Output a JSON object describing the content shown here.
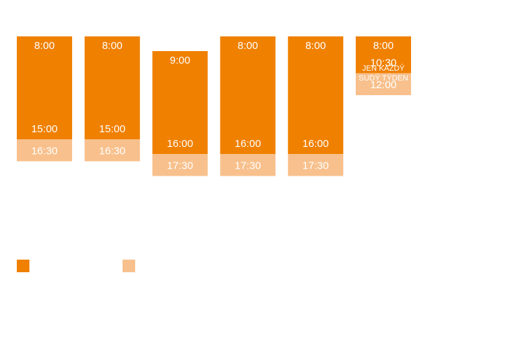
{
  "chart_data": {
    "type": "bar",
    "title": "",
    "xlabel": "",
    "ylabel": "",
    "ylim_hours": [
      8,
      17.5
    ],
    "colors": {
      "primary": "#F08000",
      "extended": "#F8C08C"
    },
    "columns": [
      {
        "start": 8.0,
        "end": 15.0,
        "extended_end": 16.5,
        "start_label": "8:00",
        "end_label": "15:00",
        "extended_label": "16:30",
        "note": []
      },
      {
        "start": 8.0,
        "end": 15.0,
        "extended_end": 16.5,
        "start_label": "8:00",
        "end_label": "15:00",
        "extended_label": "16:30",
        "note": []
      },
      {
        "start": 9.0,
        "end": 16.0,
        "extended_end": 17.5,
        "start_label": "9:00",
        "end_label": "16:00",
        "extended_label": "17:30",
        "note": []
      },
      {
        "start": 8.0,
        "end": 16.0,
        "extended_end": 17.5,
        "start_label": "8:00",
        "end_label": "16:00",
        "extended_label": "17:30",
        "note": []
      },
      {
        "start": 8.0,
        "end": 16.0,
        "extended_end": 17.5,
        "start_label": "8:00",
        "end_label": "16:00",
        "extended_label": "17:30",
        "note": []
      },
      {
        "start": 8.0,
        "end": 10.5,
        "extended_end": 12.0,
        "start_label": "8:00",
        "end_label": "10:30",
        "extended_label": "12:00",
        "note": [
          "JEN KAŽDÝ",
          "SUDÝ TÝDEN"
        ]
      }
    ],
    "legend": [
      {
        "series": "primary",
        "text": ""
      },
      {
        "series": "extended",
        "text": ""
      }
    ]
  }
}
